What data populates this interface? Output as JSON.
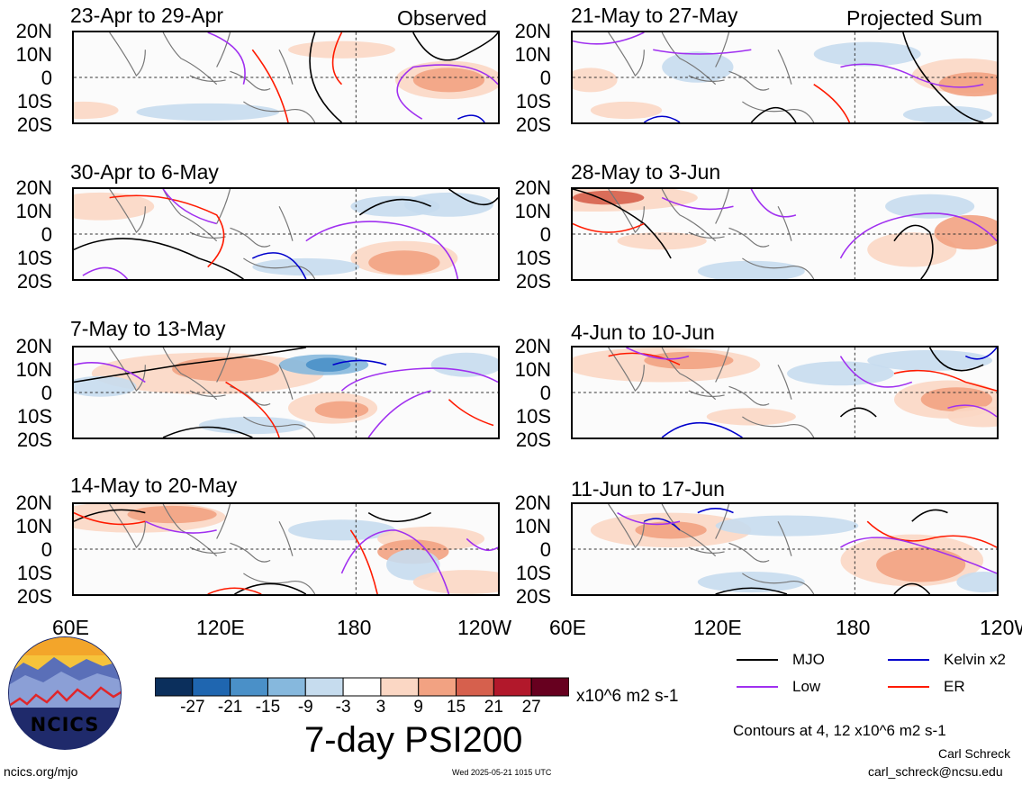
{
  "chart_data": {
    "type": "heatmap",
    "title": "7-day PSI200",
    "units": "x10^6 m2 s-1",
    "contour_note": "Contours at 4, 12 x10^6 m2 s-1",
    "y_ticks": [
      "20N",
      "10N",
      "0",
      "10S",
      "20S"
    ],
    "x_ticks": [
      "60E",
      "120E",
      "180",
      "120W"
    ],
    "x_ticks_right": [
      "60E",
      "120E",
      "180",
      "120W"
    ],
    "columns": [
      {
        "label": "Observed",
        "panels": [
          "23-Apr to 29-Apr",
          "30-Apr to 6-May",
          "7-May to 13-May",
          "14-May to 20-May"
        ]
      },
      {
        "label": "Projected Sum",
        "panels": [
          "21-May to 27-May",
          "28-May to 3-Jun",
          "4-Jun to 10-Jun",
          "11-Jun to 17-Jun"
        ]
      }
    ],
    "colorbar": {
      "ticks": [
        "-27",
        "-21",
        "-15",
        "-9",
        "-3",
        "3",
        "9",
        "15",
        "21",
        "27"
      ],
      "colors": [
        "#0b2f5c",
        "#1f66b0",
        "#4a90c8",
        "#86b8dd",
        "#c6dcee",
        "#ffffff",
        "#fbd7c4",
        "#f2a282",
        "#d6604d",
        "#b2182b",
        "#67001f"
      ]
    },
    "legend": [
      {
        "name": "MJO",
        "color": "#000000"
      },
      {
        "name": "Kelvin x2",
        "color": "#0000cc"
      },
      {
        "name": "Low",
        "color": "#a030f0"
      },
      {
        "name": "ER",
        "color": "#ff1a00"
      }
    ]
  },
  "footer": {
    "logo_text": "NCICS",
    "url": "ncics.org/mjo",
    "timestamp": "Wed 2025-05-21 1015 UTC",
    "author": "Carl Schreck",
    "email": "carl_schreck@ncsu.edu"
  }
}
